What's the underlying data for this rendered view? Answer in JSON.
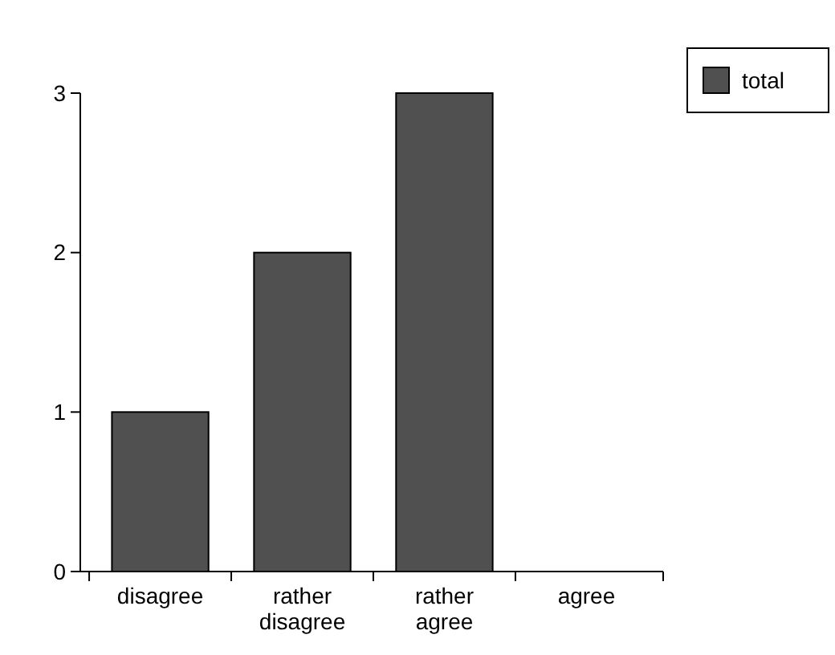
{
  "chart_data": {
    "type": "bar",
    "categories": [
      "disagree",
      "rather disagree",
      "rather agree",
      "agree"
    ],
    "series": [
      {
        "name": "total",
        "color": "#505050",
        "values": [
          1,
          2,
          3,
          0
        ]
      }
    ],
    "ylim": [
      0,
      3
    ],
    "yticks": [
      0,
      1,
      2,
      3
    ],
    "legend": "top right",
    "grid": false
  }
}
